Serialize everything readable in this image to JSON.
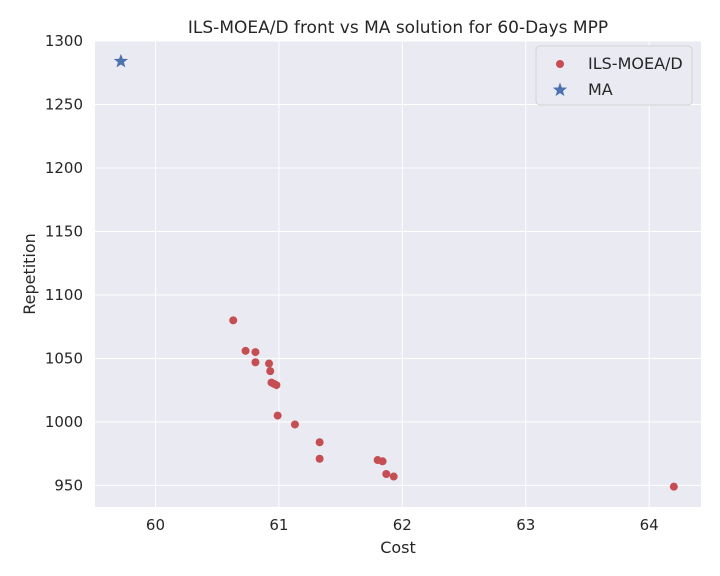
{
  "chart_data": {
    "type": "scatter",
    "title": "ILS-MOEA/D front vs MA solution for 60-Days MPP",
    "xlabel": "Cost",
    "ylabel": "Repetition",
    "xlim": [
      59.51,
      64.42
    ],
    "ylim": [
      933,
      1300
    ],
    "xticks": [
      60,
      61,
      62,
      63,
      64
    ],
    "yticks": [
      950,
      1000,
      1050,
      1100,
      1150,
      1200,
      1250,
      1300
    ],
    "grid": true,
    "legend_position": "top-right",
    "colors": {
      "background": "#eaeaf2",
      "grid": "#ffffff",
      "text": "#262626"
    },
    "series": [
      {
        "name": "ILS-MOEA/D",
        "marker": "circle",
        "color": "#c44e52",
        "points": [
          [
            60.63,
            1080
          ],
          [
            60.73,
            1056
          ],
          [
            60.81,
            1055
          ],
          [
            60.81,
            1047
          ],
          [
            60.92,
            1046
          ],
          [
            60.93,
            1040
          ],
          [
            60.94,
            1031
          ],
          [
            60.96,
            1030
          ],
          [
            60.98,
            1029
          ],
          [
            60.99,
            1005
          ],
          [
            61.13,
            998
          ],
          [
            61.33,
            984
          ],
          [
            61.33,
            971
          ],
          [
            61.8,
            970
          ],
          [
            61.84,
            969
          ],
          [
            61.87,
            959
          ],
          [
            61.93,
            957
          ],
          [
            64.2,
            949
          ]
        ]
      },
      {
        "name": "MA",
        "marker": "star",
        "color": "#4c72b0",
        "points": [
          [
            59.72,
            1284
          ]
        ]
      }
    ]
  }
}
